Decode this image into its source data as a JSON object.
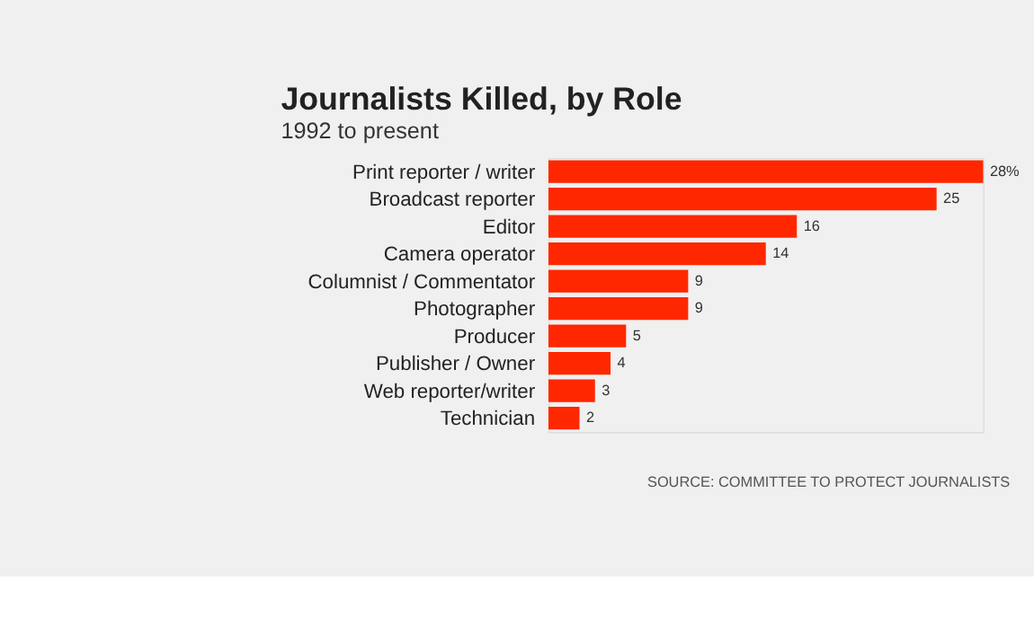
{
  "chart_data": {
    "type": "bar",
    "orientation": "horizontal",
    "title": "Journalists Killed, by Role",
    "subtitle": "1992 to present",
    "categories": [
      "Print reporter / writer",
      "Broadcast reporter",
      "Editor",
      "Camera operator",
      "Columnist / Commentator",
      "Photographer",
      "Producer",
      "Publisher / Owner",
      "Web reporter/writer",
      "Technician"
    ],
    "values": [
      28,
      25,
      16,
      14,
      9,
      9,
      5,
      4,
      3,
      2
    ],
    "value_labels": [
      "28%",
      "25",
      "16",
      "14",
      "9",
      "9",
      "5",
      "4",
      "3",
      "2"
    ],
    "color": "#ff2700",
    "annotations": [
      "SOURCE: COMMITTEE TO PROTECT JOURNALISTS"
    ]
  }
}
